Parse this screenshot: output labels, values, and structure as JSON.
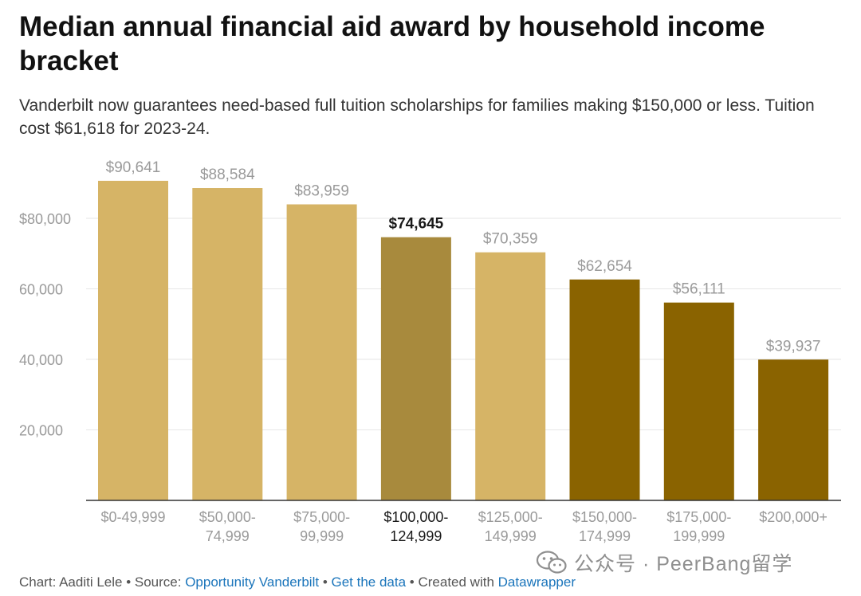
{
  "header": {
    "title": "Median annual financial aid award by household income bracket",
    "subtitle": "Vanderbilt now guarantees need-based full tuition scholarships for families making $150,000 or less. Tuition cost $61,618 for 2023-24."
  },
  "chart_data": {
    "type": "bar",
    "categories": [
      [
        "$0-49,999"
      ],
      [
        "$50,000-",
        "74,999"
      ],
      [
        "$75,000-",
        "99,999"
      ],
      [
        "$100,000-",
        "124,999"
      ],
      [
        "$125,000-",
        "149,999"
      ],
      [
        "$150,000-",
        "174,999"
      ],
      [
        "$175,000-",
        "199,999"
      ],
      [
        "$200,000+"
      ]
    ],
    "values": [
      90641,
      88584,
      83959,
      74645,
      70359,
      62654,
      56111,
      39937
    ],
    "value_labels": [
      "$90,641",
      "$88,584",
      "$83,959",
      "$74,645",
      "$70,359",
      "$62,654",
      "$56,111",
      "$39,937"
    ],
    "bar_colors": [
      "#d6b466",
      "#d6b466",
      "#d6b466",
      "#a88a3d",
      "#d6b466",
      "#8a6300",
      "#8a6300",
      "#8a6300"
    ],
    "highlight_index": 3,
    "y_ticks": [
      20000,
      40000,
      60000,
      80000
    ],
    "y_tick_labels": [
      "20,000",
      "40,000",
      "60,000",
      "$80,000"
    ],
    "ylim": [
      0,
      100000
    ],
    "grid": true,
    "colors": {
      "light_bar": "#d6b466",
      "highlight_bar": "#a88a3d",
      "dark_bar": "#8a6300",
      "muted_text": "#9a9a9a",
      "highlight_text": "#1a1a1a",
      "grid": "#e6e6e6",
      "axis": "#333333"
    }
  },
  "footer": {
    "chart_credit": "Chart: Aaditi Lele",
    "sep1": " • ",
    "source_prefix": "Source: ",
    "source_link": "Opportunity Vanderbilt",
    "sep2": " • ",
    "data_link": "Get the data",
    "sep3": " • ",
    "created_prefix": "Created with ",
    "created_link": "Datawrapper"
  },
  "watermark": {
    "icon": "wechat-icon",
    "text": "公众号 · PeerBang留学"
  }
}
